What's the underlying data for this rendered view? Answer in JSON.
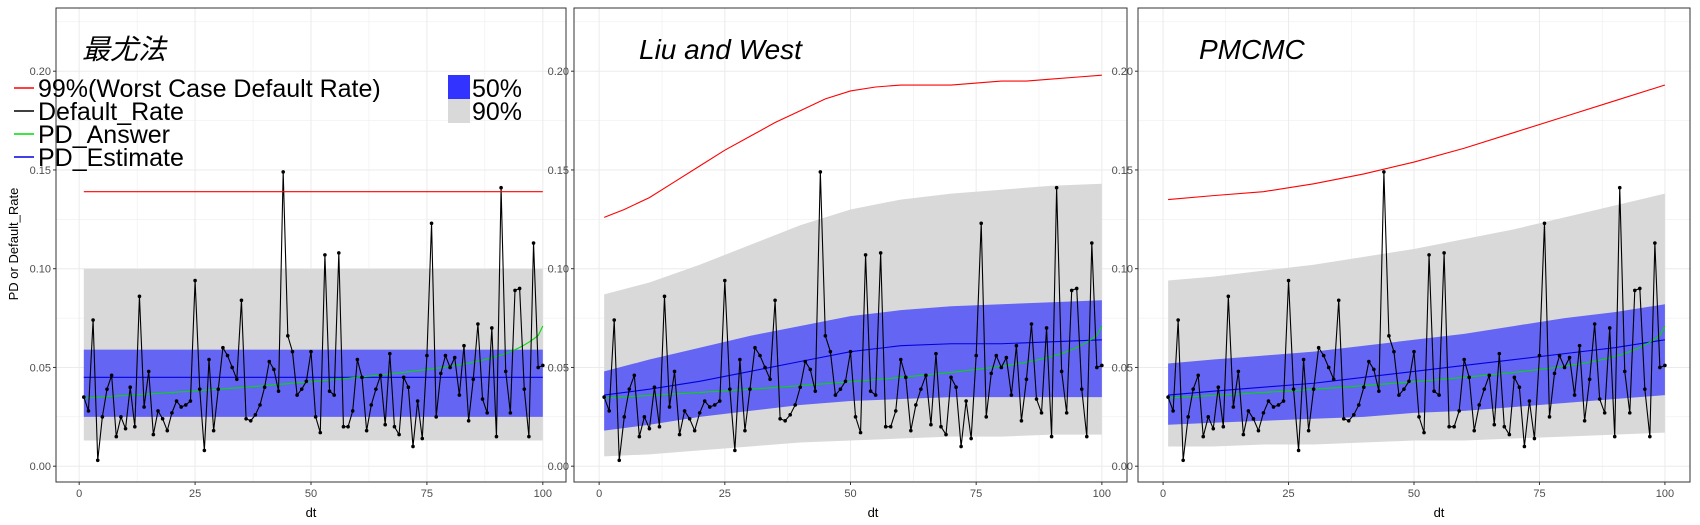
{
  "colors": {
    "worst_case": "#ff0000",
    "default_rate": "#000000",
    "pd_answer": "#00dd00",
    "pd_estimate": "#0000dd",
    "band50": "#3333ff",
    "band90": "#d9d9d9",
    "grid": "#ebebeb",
    "panel_border": "#333333"
  },
  "shared_series": {
    "x": [
      1,
      2,
      3,
      4,
      5,
      6,
      7,
      8,
      9,
      10,
      11,
      12,
      13,
      14,
      15,
      16,
      17,
      18,
      19,
      20,
      21,
      22,
      23,
      24,
      25,
      26,
      27,
      28,
      29,
      30,
      31,
      32,
      33,
      34,
      35,
      36,
      37,
      38,
      39,
      40,
      41,
      42,
      43,
      44,
      45,
      46,
      47,
      48,
      49,
      50,
      51,
      52,
      53,
      54,
      55,
      56,
      57,
      58,
      59,
      60,
      61,
      62,
      63,
      64,
      65,
      66,
      67,
      68,
      69,
      70,
      71,
      72,
      73,
      74,
      75,
      76,
      77,
      78,
      79,
      80,
      81,
      82,
      83,
      84,
      85,
      86,
      87,
      88,
      89,
      90,
      91,
      92,
      93,
      94,
      95,
      96,
      97,
      98,
      99,
      100
    ],
    "default_rate": [
      0.035,
      0.028,
      0.074,
      0.003,
      0.025,
      0.039,
      0.046,
      0.015,
      0.025,
      0.019,
      0.04,
      0.02,
      0.086,
      0.03,
      0.048,
      0.016,
      0.028,
      0.024,
      0.018,
      0.027,
      0.033,
      0.03,
      0.031,
      0.033,
      0.094,
      0.039,
      0.008,
      0.054,
      0.018,
      0.039,
      0.06,
      0.056,
      0.05,
      0.044,
      0.084,
      0.024,
      0.023,
      0.026,
      0.031,
      0.04,
      0.053,
      0.049,
      0.038,
      0.149,
      0.066,
      0.058,
      0.036,
      0.039,
      0.043,
      0.058,
      0.025,
      0.017,
      0.107,
      0.038,
      0.036,
      0.108,
      0.02,
      0.02,
      0.028,
      0.054,
      0.045,
      0.018,
      0.031,
      0.039,
      0.046,
      0.021,
      0.057,
      0.02,
      0.016,
      0.045,
      0.04,
      0.01,
      0.033,
      0.014,
      0.056,
      0.123,
      0.025,
      0.047,
      0.056,
      0.05,
      0.055,
      0.036,
      0.061,
      0.023,
      0.044,
      0.072,
      0.034,
      0.027,
      0.07,
      0.015,
      0.141,
      0.048,
      0.027,
      0.089,
      0.09,
      0.039,
      0.015,
      0.113,
      0.05,
      0.051
    ],
    "pd_answer": [
      0.0345,
      0.0347,
      0.0348,
      0.035,
      0.0351,
      0.0352,
      0.0354,
      0.0355,
      0.0357,
      0.0358,
      0.036,
      0.0361,
      0.0363,
      0.0364,
      0.0366,
      0.0367,
      0.0369,
      0.037,
      0.0372,
      0.0373,
      0.0375,
      0.0377,
      0.0378,
      0.038,
      0.0381,
      0.0383,
      0.0385,
      0.0386,
      0.0388,
      0.039,
      0.0392,
      0.0393,
      0.0395,
      0.0397,
      0.0399,
      0.0401,
      0.0402,
      0.0404,
      0.0406,
      0.0408,
      0.041,
      0.0412,
      0.0414,
      0.0416,
      0.0418,
      0.042,
      0.0422,
      0.0424,
      0.0426,
      0.0428,
      0.043,
      0.0432,
      0.0434,
      0.0436,
      0.0439,
      0.0441,
      0.0443,
      0.0445,
      0.0448,
      0.045,
      0.0452,
      0.0455,
      0.0457,
      0.046,
      0.0462,
      0.0465,
      0.0467,
      0.047,
      0.0472,
      0.0475,
      0.0478,
      0.0481,
      0.0484,
      0.0487,
      0.049,
      0.0493,
      0.0496,
      0.0499,
      0.0503,
      0.0506,
      0.051,
      0.0514,
      0.0518,
      0.0522,
      0.0527,
      0.0532,
      0.0537,
      0.0543,
      0.0549,
      0.0556,
      0.0563,
      0.0571,
      0.058,
      0.059,
      0.0601,
      0.0614,
      0.0628,
      0.0644,
      0.0662,
      0.071
    ]
  },
  "x_axis_title": "dt",
  "y_axis_title": "PD or Default_Rate",
  "x_ticks": [
    "0",
    "25",
    "50",
    "75",
    "100"
  ],
  "y_ticks": [
    "0.00",
    "0.05",
    "0.10",
    "0.15",
    "0.20"
  ],
  "legend": {
    "lines": [
      {
        "label": "99%(Worst Case Default Rate)",
        "color": "#ff0000"
      },
      {
        "label": "Default_Rate",
        "color": "#000000"
      },
      {
        "label": "PD_Answer",
        "color": "#00dd00"
      },
      {
        "label": "PD_Estimate",
        "color": "#0000dd"
      }
    ],
    "fills": [
      {
        "label": "50%",
        "color": "#3333ff"
      },
      {
        "label": "90%",
        "color": "#d9d9d9"
      }
    ]
  },
  "chart_data": [
    {
      "type": "line",
      "title": "最尤法",
      "xlabel": "dt",
      "ylabel": "PD or Default_Rate",
      "xlim": [
        -5,
        105
      ],
      "ylim": [
        -0.008,
        0.232
      ],
      "grid": true,
      "legend_position": "top-left",
      "worst_case": {
        "x": [
          1,
          100
        ],
        "y": [
          0.139,
          0.139
        ]
      },
      "pd_estimate": {
        "x": [
          1,
          100
        ],
        "y": [
          0.045,
          0.045
        ]
      },
      "band50": {
        "x": [
          1,
          100
        ],
        "lower": [
          0.025,
          0.025
        ],
        "upper": [
          0.059,
          0.059
        ]
      },
      "band90": {
        "x": [
          1,
          100
        ],
        "lower": [
          0.013,
          0.013
        ],
        "upper": [
          0.1,
          0.1
        ]
      }
    },
    {
      "type": "line",
      "title": "Liu and West",
      "xlabel": "dt",
      "ylabel": "",
      "xlim": [
        -5,
        105
      ],
      "ylim": [
        -0.008,
        0.232
      ],
      "grid": true,
      "worst_case": {
        "x": [
          1,
          5,
          10,
          15,
          20,
          25,
          30,
          35,
          40,
          45,
          50,
          55,
          60,
          65,
          70,
          75,
          80,
          85,
          90,
          95,
          100
        ],
        "y": [
          0.126,
          0.13,
          0.136,
          0.144,
          0.152,
          0.16,
          0.167,
          0.174,
          0.18,
          0.186,
          0.19,
          0.192,
          0.193,
          0.193,
          0.193,
          0.194,
          0.195,
          0.195,
          0.196,
          0.197,
          0.198
        ]
      },
      "pd_estimate": {
        "x": [
          1,
          10,
          20,
          30,
          40,
          50,
          60,
          70,
          80,
          90,
          100
        ],
        "y": [
          0.036,
          0.039,
          0.043,
          0.048,
          0.053,
          0.058,
          0.061,
          0.062,
          0.062,
          0.063,
          0.064
        ]
      },
      "band50": {
        "x": [
          1,
          10,
          20,
          30,
          40,
          50,
          60,
          70,
          80,
          90,
          100
        ],
        "lower": [
          0.018,
          0.021,
          0.025,
          0.028,
          0.031,
          0.033,
          0.034,
          0.035,
          0.035,
          0.035,
          0.035
        ],
        "upper": [
          0.048,
          0.054,
          0.06,
          0.066,
          0.071,
          0.076,
          0.079,
          0.081,
          0.082,
          0.083,
          0.084
        ]
      },
      "band90": {
        "x": [
          1,
          10,
          20,
          30,
          40,
          50,
          60,
          70,
          80,
          90,
          100
        ],
        "lower": [
          0.005,
          0.006,
          0.008,
          0.01,
          0.012,
          0.013,
          0.014,
          0.015,
          0.015,
          0.016,
          0.016
        ],
        "upper": [
          0.087,
          0.093,
          0.102,
          0.112,
          0.122,
          0.13,
          0.135,
          0.138,
          0.14,
          0.142,
          0.143
        ]
      }
    },
    {
      "type": "line",
      "title": "PMCMC",
      "xlabel": "dt",
      "ylabel": "",
      "xlim": [
        -5,
        105
      ],
      "ylim": [
        -0.008,
        0.232
      ],
      "grid": true,
      "worst_case": {
        "x": [
          1,
          10,
          20,
          30,
          40,
          50,
          60,
          70,
          80,
          90,
          100
        ],
        "y": [
          0.135,
          0.137,
          0.139,
          0.143,
          0.148,
          0.154,
          0.161,
          0.169,
          0.177,
          0.185,
          0.193
        ]
      },
      "pd_estimate": {
        "x": [
          1,
          10,
          20,
          30,
          40,
          50,
          60,
          70,
          80,
          90,
          100
        ],
        "y": [
          0.036,
          0.038,
          0.04,
          0.042,
          0.045,
          0.048,
          0.051,
          0.054,
          0.057,
          0.06,
          0.064
        ]
      },
      "band50": {
        "x": [
          1,
          10,
          20,
          30,
          40,
          50,
          60,
          70,
          80,
          90,
          100
        ],
        "lower": [
          0.021,
          0.022,
          0.023,
          0.024,
          0.025,
          0.027,
          0.028,
          0.03,
          0.032,
          0.034,
          0.036
        ],
        "upper": [
          0.052,
          0.054,
          0.056,
          0.058,
          0.061,
          0.064,
          0.067,
          0.071,
          0.075,
          0.078,
          0.082
        ]
      },
      "band90": {
        "x": [
          1,
          10,
          20,
          30,
          40,
          50,
          60,
          70,
          80,
          90,
          100
        ],
        "lower": [
          0.01,
          0.01,
          0.011,
          0.011,
          0.012,
          0.013,
          0.013,
          0.014,
          0.015,
          0.016,
          0.017
        ],
        "upper": [
          0.094,
          0.096,
          0.099,
          0.102,
          0.106,
          0.11,
          0.115,
          0.12,
          0.126,
          0.132,
          0.138
        ]
      }
    }
  ]
}
